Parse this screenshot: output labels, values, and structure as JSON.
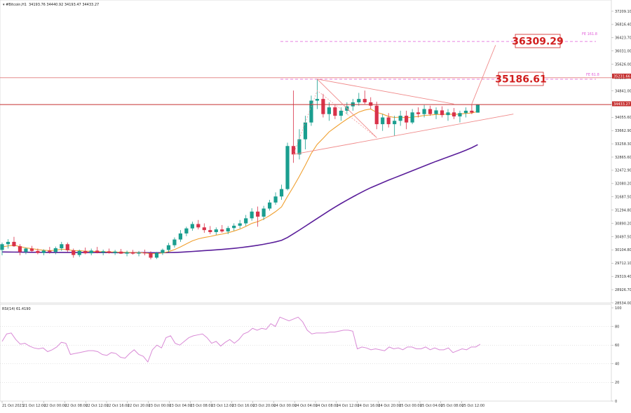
{
  "header": {
    "symbol": "#Bitcoin,H1",
    "ohlc": "34193.76 34440.92 34193.47 34433.27"
  },
  "price_axis": {
    "ticks": [
      "37209.10",
      "36816.40",
      "36423.70",
      "36031.00",
      "35626.00",
      "35231.70",
      "34841.00",
      "34433.27",
      "34055.60",
      "33662.90",
      "33258.30",
      "32865.60",
      "32472.90",
      "32080.20",
      "31687.50",
      "31294.80",
      "30890.20",
      "30497.50",
      "30104.80",
      "29712.10",
      "29319.40",
      "28926.70",
      "28534.00"
    ],
    "current_price_label": "34433.27",
    "pivot_label": "35231.66"
  },
  "rsi": {
    "header": "RSI(14) 61.4190",
    "ticks": [
      "100",
      "80",
      "60",
      "40",
      "20",
      "0"
    ],
    "values": [
      64,
      72,
      73,
      66,
      61,
      62,
      59,
      57,
      56,
      57,
      53,
      55,
      58,
      63,
      62,
      50,
      51,
      52,
      53,
      54,
      54,
      53,
      50,
      49,
      52,
      51,
      47,
      46,
      51,
      55,
      50,
      48,
      42,
      55,
      60,
      57,
      68,
      70,
      62,
      60,
      64,
      68,
      70,
      71,
      72,
      68,
      62,
      64,
      59,
      63,
      66,
      62,
      66,
      72,
      74,
      78,
      76,
      78,
      77,
      83,
      80,
      90,
      88,
      86,
      88,
      90,
      85,
      76,
      72,
      73,
      73,
      73,
      74,
      74,
      75,
      76,
      76,
      75,
      56,
      58,
      57,
      55,
      56,
      55,
      54,
      58,
      56,
      57,
      55,
      58,
      58,
      56,
      56,
      58,
      55,
      57,
      55,
      55,
      57,
      52,
      54,
      56,
      55,
      58,
      58,
      61
    ]
  },
  "time_axis": {
    "labels": [
      "21 Oct 2023",
      "21 Oct 12:00",
      "22 Oct 00:00",
      "22 Oct 08:00",
      "22 Oct 12:00",
      "22 Oct 16:00",
      "22 Oct 20:00",
      "23 Oct 00:00",
      "23 Oct 04:00",
      "23 Oct 08:00",
      "23 Oct 12:00",
      "23 Oct 16:00",
      "23 Oct 20:00",
      "24 Oct 00:00",
      "24 Oct 04:00",
      "24 Oct 08:00",
      "24 Oct 12:00",
      "24 Oct 16:00",
      "24 Oct 20:00",
      "25 Oct 00:00",
      "25 Oct 04:00",
      "25 Oct 08:00",
      "25 Oct 12:00"
    ]
  },
  "annotations": {
    "target_value": "36309.29",
    "resistance_value": "35186.61",
    "target_level_label": "FE 161.8",
    "resistance_level_label": "FE 61.8"
  },
  "colors": {
    "bull": "#1a9e8f",
    "bear": "#d9324a",
    "ema_fast": "#f0a030",
    "ema_slow": "#5a1e9a",
    "trendline": "#f08a8a",
    "price_line": "#c53030",
    "fib_level": "#e05ad8",
    "rsi_line": "#d98ad6",
    "callout": "#d11e1e"
  },
  "chart_data": {
    "type": "candlestick",
    "instrument": "#Bitcoin",
    "timeframe": "H1",
    "y_range": [
      28534,
      37209.1
    ],
    "candles": [
      {
        "o": 30110,
        "h": 30330,
        "l": 29950,
        "c": 30280
      },
      {
        "o": 30280,
        "h": 30430,
        "l": 30150,
        "c": 30350
      },
      {
        "o": 30350,
        "h": 30500,
        "l": 30200,
        "c": 30220
      },
      {
        "o": 30220,
        "h": 30280,
        "l": 29950,
        "c": 30050
      },
      {
        "o": 30050,
        "h": 30180,
        "l": 29980,
        "c": 30150
      },
      {
        "o": 30150,
        "h": 30230,
        "l": 30050,
        "c": 30080
      },
      {
        "o": 30080,
        "h": 30150,
        "l": 29980,
        "c": 30020
      },
      {
        "o": 30020,
        "h": 30130,
        "l": 29950,
        "c": 30090
      },
      {
        "o": 30090,
        "h": 30200,
        "l": 30000,
        "c": 30050
      },
      {
        "o": 30050,
        "h": 30210,
        "l": 29980,
        "c": 30160
      },
      {
        "o": 30160,
        "h": 30350,
        "l": 30080,
        "c": 30280
      },
      {
        "o": 30280,
        "h": 30330,
        "l": 30050,
        "c": 30100
      },
      {
        "o": 30100,
        "h": 30150,
        "l": 29880,
        "c": 29960
      },
      {
        "o": 29960,
        "h": 30120,
        "l": 29900,
        "c": 30080
      },
      {
        "o": 30080,
        "h": 30180,
        "l": 29980,
        "c": 30010
      },
      {
        "o": 30010,
        "h": 30150,
        "l": 29950,
        "c": 30090
      },
      {
        "o": 30090,
        "h": 30200,
        "l": 30010,
        "c": 30030
      },
      {
        "o": 30030,
        "h": 30120,
        "l": 29950,
        "c": 30070
      },
      {
        "o": 30070,
        "h": 30150,
        "l": 30000,
        "c": 30020
      },
      {
        "o": 30020,
        "h": 30110,
        "l": 29960,
        "c": 30060
      },
      {
        "o": 30060,
        "h": 30140,
        "l": 29990,
        "c": 30000
      },
      {
        "o": 30000,
        "h": 30090,
        "l": 29920,
        "c": 30040
      },
      {
        "o": 30040,
        "h": 30110,
        "l": 29970,
        "c": 30000
      },
      {
        "o": 30000,
        "h": 30080,
        "l": 29920,
        "c": 30030
      },
      {
        "o": 30030,
        "h": 30120,
        "l": 29950,
        "c": 30010
      },
      {
        "o": 30010,
        "h": 30070,
        "l": 29830,
        "c": 29880
      },
      {
        "o": 29880,
        "h": 30050,
        "l": 29840,
        "c": 30020
      },
      {
        "o": 30020,
        "h": 30150,
        "l": 29960,
        "c": 30110
      },
      {
        "o": 30110,
        "h": 30320,
        "l": 30040,
        "c": 30250
      },
      {
        "o": 30250,
        "h": 30480,
        "l": 30180,
        "c": 30420
      },
      {
        "o": 30420,
        "h": 30700,
        "l": 30350,
        "c": 30600
      },
      {
        "o": 30600,
        "h": 30800,
        "l": 30520,
        "c": 30750
      },
      {
        "o": 30750,
        "h": 30950,
        "l": 30680,
        "c": 30880
      },
      {
        "o": 30880,
        "h": 31000,
        "l": 30720,
        "c": 30780
      },
      {
        "o": 30780,
        "h": 30900,
        "l": 30620,
        "c": 30700
      },
      {
        "o": 30700,
        "h": 30820,
        "l": 30580,
        "c": 30640
      },
      {
        "o": 30640,
        "h": 30780,
        "l": 30560,
        "c": 30720
      },
      {
        "o": 30720,
        "h": 30850,
        "l": 30620,
        "c": 30660
      },
      {
        "o": 30660,
        "h": 30820,
        "l": 30580,
        "c": 30760
      },
      {
        "o": 30760,
        "h": 30900,
        "l": 30680,
        "c": 30830
      },
      {
        "o": 30830,
        "h": 31000,
        "l": 30750,
        "c": 30900
      },
      {
        "o": 30900,
        "h": 31150,
        "l": 30820,
        "c": 31050
      },
      {
        "o": 31050,
        "h": 31350,
        "l": 30980,
        "c": 31250
      },
      {
        "o": 31250,
        "h": 31400,
        "l": 30800,
        "c": 31100
      },
      {
        "o": 31100,
        "h": 31420,
        "l": 31000,
        "c": 31340
      },
      {
        "o": 31340,
        "h": 31600,
        "l": 31280,
        "c": 31520
      },
      {
        "o": 31520,
        "h": 31820,
        "l": 31450,
        "c": 31700
      },
      {
        "o": 31700,
        "h": 32050,
        "l": 31600,
        "c": 31920
      },
      {
        "o": 31920,
        "h": 33300,
        "l": 31880,
        "c": 33200
      },
      {
        "o": 33200,
        "h": 34850,
        "l": 32700,
        "c": 32950
      },
      {
        "o": 32950,
        "h": 33700,
        "l": 32800,
        "c": 33400
      },
      {
        "o": 33400,
        "h": 34100,
        "l": 33100,
        "c": 33900
      },
      {
        "o": 33900,
        "h": 34700,
        "l": 33800,
        "c": 34550
      },
      {
        "o": 34550,
        "h": 35190,
        "l": 34300,
        "c": 34600
      },
      {
        "o": 34600,
        "h": 34750,
        "l": 34050,
        "c": 34150
      },
      {
        "o": 34150,
        "h": 34500,
        "l": 33950,
        "c": 34350
      },
      {
        "o": 34350,
        "h": 34450,
        "l": 34000,
        "c": 34100
      },
      {
        "o": 34100,
        "h": 34350,
        "l": 33950,
        "c": 34250
      },
      {
        "o": 34250,
        "h": 34500,
        "l": 34150,
        "c": 34380
      },
      {
        "o": 34380,
        "h": 34600,
        "l": 34250,
        "c": 34500
      },
      {
        "o": 34500,
        "h": 34780,
        "l": 34400,
        "c": 34600
      },
      {
        "o": 34600,
        "h": 34850,
        "l": 34450,
        "c": 34500
      },
      {
        "o": 34500,
        "h": 34650,
        "l": 34300,
        "c": 34400
      },
      {
        "o": 34400,
        "h": 34520,
        "l": 33700,
        "c": 33850
      },
      {
        "o": 33850,
        "h": 34150,
        "l": 33650,
        "c": 34050
      },
      {
        "o": 34050,
        "h": 34180,
        "l": 33750,
        "c": 33850
      },
      {
        "o": 33850,
        "h": 34100,
        "l": 33500,
        "c": 33950
      },
      {
        "o": 33950,
        "h": 34250,
        "l": 33800,
        "c": 34100
      },
      {
        "o": 34100,
        "h": 34250,
        "l": 33700,
        "c": 33900
      },
      {
        "o": 33900,
        "h": 34300,
        "l": 33850,
        "c": 34200
      },
      {
        "o": 34200,
        "h": 34350,
        "l": 34050,
        "c": 34150
      },
      {
        "o": 34150,
        "h": 34420,
        "l": 34050,
        "c": 34300
      },
      {
        "o": 34300,
        "h": 34400,
        "l": 34100,
        "c": 34150
      },
      {
        "o": 34150,
        "h": 34350,
        "l": 34000,
        "c": 34260
      },
      {
        "o": 34260,
        "h": 34380,
        "l": 34050,
        "c": 34120
      },
      {
        "o": 34120,
        "h": 34300,
        "l": 33950,
        "c": 34200
      },
      {
        "o": 34200,
        "h": 34330,
        "l": 34000,
        "c": 34080
      },
      {
        "o": 34080,
        "h": 34250,
        "l": 33900,
        "c": 34180
      },
      {
        "o": 34180,
        "h": 34350,
        "l": 34050,
        "c": 34250
      },
      {
        "o": 34250,
        "h": 34430,
        "l": 34150,
        "c": 34194
      },
      {
        "o": 34193.76,
        "h": 34440.92,
        "l": 34193.47,
        "c": 34433.27
      }
    ],
    "ema_fast": [
      30200,
      30230,
      30250,
      30210,
      30170,
      30150,
      30120,
      30100,
      30090,
      30100,
      30130,
      30120,
      30090,
      30090,
      30070,
      30070,
      30060,
      30060,
      30050,
      30050,
      30040,
      30040,
      30030,
      30030,
      30020,
      30000,
      30000,
      30020,
      30060,
      30120,
      30200,
      30290,
      30380,
      30440,
      30480,
      30510,
      30550,
      30580,
      30620,
      30670,
      30730,
      30810,
      30900,
      30950,
      31030,
      31130,
      31250,
      31390,
      31700,
      31990,
      32300,
      32630,
      32980,
      33250,
      33430,
      33620,
      33750,
      33880,
      34000,
      34110,
      34210,
      34270,
      34300,
      34200,
      34150,
      34080,
      34050,
      34060,
      34040,
      34060,
      34080,
      34110,
      34120,
      34140,
      34140,
      34150,
      34140,
      34150,
      34170,
      34180,
      34230
    ],
    "ema_slow": [
      30050,
      30048,
      30046,
      30044,
      30042,
      30040,
      30038,
      30036,
      30035,
      30034,
      30034,
      30034,
      30033,
      30032,
      30031,
      30031,
      30030,
      30030,
      30030,
      30029,
      30029,
      30029,
      30028,
      30028,
      30028,
      30027,
      30027,
      30028,
      30030,
      30035,
      30042,
      30052,
      30064,
      30076,
      30088,
      30100,
      30112,
      30126,
      30141,
      30157,
      30176,
      30198,
      30222,
      30248,
      30278,
      30312,
      30350,
      30395,
      30480,
      30590,
      30700,
      30815,
      30930,
      31045,
      31160,
      31275,
      31385,
      31490,
      31590,
      31688,
      31783,
      31875,
      31960,
      32035,
      32110,
      32185,
      32255,
      32325,
      32395,
      32465,
      32535,
      32605,
      32675,
      32745,
      32810,
      32875,
      32940,
      33005,
      33075,
      33150,
      33240
    ],
    "triangle": {
      "upper": [
        [
          53,
          35190
        ],
        [
          76,
          34450
        ]
      ],
      "lower": [
        [
          49,
          32950
        ],
        [
          86,
          34150
        ]
      ],
      "inner_zigzag": [
        [
          49,
          32950
        ],
        [
          53,
          34850
        ],
        [
          63,
          33450
        ]
      ]
    },
    "projection": [
      [
        79,
        34450
      ],
      [
        83,
        36200
      ]
    ],
    "levels": {
      "current_price": 34433.27,
      "pivot": 35231.66,
      "target": 36309.29,
      "resistance": 35186.61
    },
    "rsi_range": [
      0,
      100
    ],
    "rsi_reference_lines": [
      80,
      60,
      40,
      20
    ],
    "time_labels": [
      "21 Oct 2023",
      "21 Oct 12:00",
      "22 Oct 00:00",
      "22 Oct 08:00",
      "22 Oct 12:00",
      "22 Oct 16:00",
      "22 Oct 20:00",
      "23 Oct 00:00",
      "23 Oct 04:00",
      "23 Oct 08:00",
      "23 Oct 12:00",
      "23 Oct 16:00",
      "23 Oct 20:00",
      "24 Oct 00:00",
      "24 Oct 04:00",
      "24 Oct 08:00",
      "24 Oct 12:00",
      "24 Oct 16:00",
      "24 Oct 20:00",
      "25 Oct 00:00",
      "25 Oct 04:00",
      "25 Oct 08:00",
      "25 Oct 12:00"
    ]
  }
}
